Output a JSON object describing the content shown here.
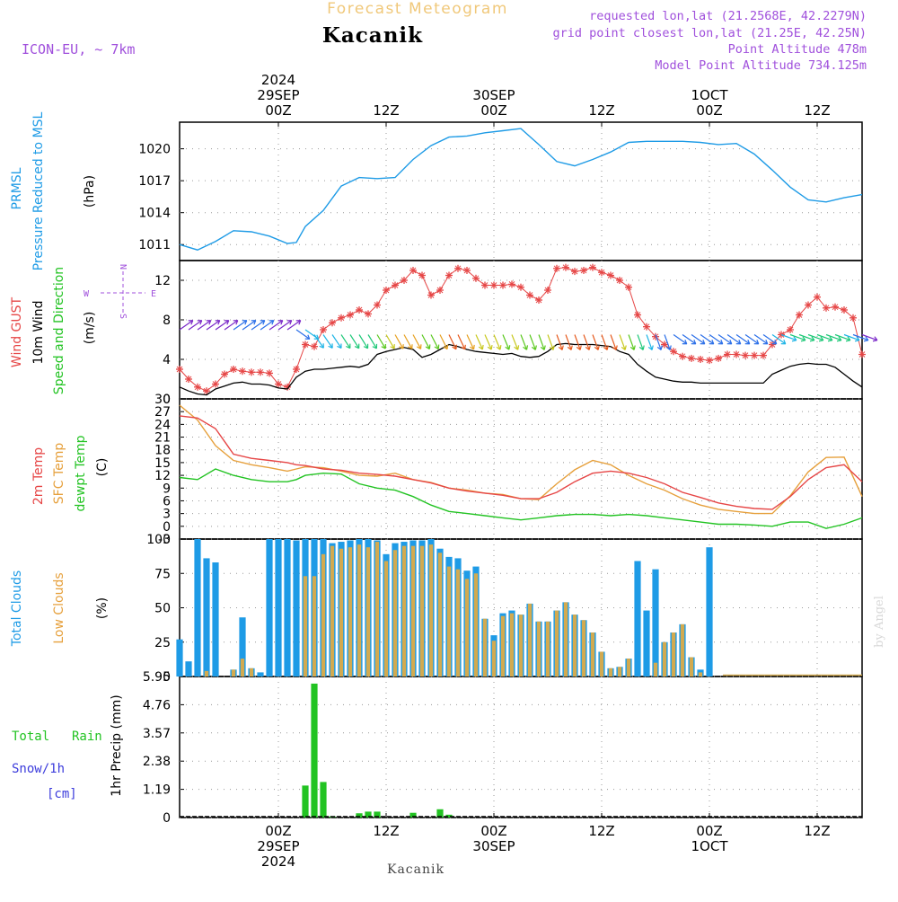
{
  "header": {
    "title": "Forecast Meteogram",
    "location": "Kacanik",
    "model": "ICON-EU, ~ 7km",
    "requested": "requested lon,lat (21.2568E, 42.2279N)",
    "gridpoint": "grid point closest lon,lat (21.25E, 42.25N)",
    "point_alt": "Point Altitude 478m",
    "model_alt": "Model Point Altitude 734.125m"
  },
  "footer": {
    "location": "Kacanik",
    "watermark": "by Angel"
  },
  "time_axis": {
    "ticks": [
      {
        "hour": 0,
        "top": [
          "2024",
          "29SEP",
          "00Z"
        ],
        "bottom": [
          "00Z",
          "29SEP",
          "2024"
        ]
      },
      {
        "hour": 12,
        "top": [
          "12Z"
        ],
        "bottom": [
          "12Z"
        ]
      },
      {
        "hour": 24,
        "top": [
          "30SEP",
          "00Z"
        ],
        "bottom": [
          "00Z",
          "30SEP"
        ]
      },
      {
        "hour": 36,
        "top": [
          "12Z"
        ],
        "bottom": [
          "12Z"
        ]
      },
      {
        "hour": 48,
        "top": [
          "1OCT",
          "00Z"
        ],
        "bottom": [
          "00Z",
          "1OCT"
        ]
      },
      {
        "hour": 60,
        "top": [
          "12Z"
        ],
        "bottom": [
          "12Z"
        ]
      }
    ],
    "range_hours": [
      -11,
      65
    ]
  },
  "colors": {
    "pressure": "#1e9be6",
    "gust": "#e64646",
    "wind": "#000000",
    "temp2m": "#e64646",
    "sfc": "#e6a03c",
    "dewpt": "#22c322",
    "total_clouds": "#1e9be6",
    "low_clouds": "#d2aa50",
    "rain": "#22c322",
    "snow": "#3c3cdc",
    "title_faint": "#f0c87a",
    "info": "#a050dc",
    "grid": "#999999"
  },
  "panels": [
    {
      "id": "pressure",
      "ylabels": [
        "PRMSL",
        "Pressure Reduced to MSL",
        "(hPa)"
      ],
      "ticks": [
        "1011",
        "1014",
        "1017",
        "1020"
      ]
    },
    {
      "id": "wind",
      "ylabels": [
        "Wind GUST",
        "10m Wind",
        "Speed and Direction",
        "(m/s)"
      ],
      "ticks": [
        "0",
        "4",
        "8",
        "12"
      ],
      "compass": [
        "N",
        "W",
        "E",
        "S"
      ]
    },
    {
      "id": "temp",
      "ylabels": [
        "2m Temp",
        "SFC Temp",
        "dewpt Temp",
        "(C)"
      ],
      "ticks": [
        "-3",
        "0",
        "3",
        "6",
        "9",
        "12",
        "15",
        "18",
        "21",
        "24",
        "27",
        "30"
      ]
    },
    {
      "id": "clouds",
      "ylabels": [
        "Total Clouds",
        "Low Clouds",
        "(%)"
      ],
      "ticks": [
        "0",
        "25",
        "50",
        "75",
        "100"
      ]
    },
    {
      "id": "precip",
      "ylabels": [
        "Total",
        "Rain",
        "Snow/1h",
        "[cm]",
        "1hr Precip (mm)"
      ],
      "ticks": [
        "0",
        "1.19",
        "2.38",
        "3.57",
        "4.76",
        "5.95"
      ]
    }
  ],
  "chart_data": [
    {
      "type": "line",
      "title": "PRMSL",
      "ylabel": "(hPa)",
      "ylim": [
        1009.5,
        1022.5
      ],
      "x": [
        -11,
        -9,
        -7,
        -5,
        -3,
        -1,
        1,
        2,
        3,
        5,
        7,
        9,
        11,
        13,
        15,
        17,
        19,
        21,
        23,
        25,
        27,
        29,
        31,
        33,
        35,
        37,
        39,
        41,
        43,
        45,
        47,
        49,
        51,
        53,
        55,
        57,
        59,
        61,
        63,
        65
      ],
      "series": [
        {
          "values": [
            1011,
            1010.5,
            1011.3,
            1012.3,
            1012.2,
            1011.8,
            1011.1,
            1011.2,
            1012.7,
            1014.2,
            1016.5,
            1017.3,
            1017.2,
            1017.3,
            1019,
            1020.3,
            1021.1,
            1021.2,
            1021.5,
            1021.7,
            1021.9,
            1020.4,
            1018.8,
            1018.4,
            1019,
            1019.7,
            1020.6,
            1020.7,
            1020.7,
            1020.7,
            1020.6,
            1020.4,
            1020.5,
            1019.5,
            1018,
            1016.4,
            1015.2,
            1015,
            1015.4,
            1015.7
          ]
        }
      ]
    },
    {
      "type": "line",
      "title": "Wind",
      "ylabel": "(m/s)",
      "ylim": [
        0,
        14
      ],
      "x": [
        -11,
        -10,
        -9,
        -8,
        -7,
        -6,
        -5,
        -4,
        -3,
        -2,
        -1,
        0,
        1,
        2,
        3,
        4,
        5,
        6,
        7,
        8,
        9,
        10,
        11,
        12,
        13,
        14,
        15,
        16,
        17,
        18,
        19,
        20,
        21,
        22,
        23,
        24,
        25,
        26,
        27,
        28,
        29,
        30,
        31,
        32,
        33,
        34,
        35,
        36,
        37,
        38,
        39,
        40,
        41,
        42,
        43,
        44,
        45,
        46,
        47,
        48,
        49,
        50,
        51,
        52,
        53,
        54,
        55,
        56,
        57,
        58,
        59,
        60,
        61,
        62,
        63,
        64,
        65
      ],
      "series": [
        {
          "name": "Wind GUST",
          "values": [
            3,
            2,
            1.2,
            0.8,
            1.5,
            2.5,
            3,
            2.8,
            2.7,
            2.7,
            2.6,
            1.5,
            1.2,
            3,
            5.5,
            5.3,
            7,
            7.7,
            8.2,
            8.5,
            9,
            8.6,
            9.5,
            11,
            11.5,
            12,
            13,
            12.5,
            10.5,
            11,
            12.5,
            13.2,
            13,
            12.2,
            11.5,
            11.5,
            11.5,
            11.6,
            11.3,
            10.5,
            10,
            11,
            13.2,
            13.3,
            12.9,
            13,
            13.3,
            12.8,
            12.5,
            12,
            11.3,
            8.5,
            7.3,
            6.3,
            5.5,
            4.8,
            4.3,
            4.1,
            4,
            3.9,
            4.1,
            4.5,
            4.5,
            4.4,
            4.4,
            4.4,
            5.5,
            6.5,
            7,
            8.5,
            9.5,
            10.3,
            9.2,
            9.3,
            9,
            8.2,
            4.5
          ]
        },
        {
          "name": "10m Wind",
          "values": [
            1.2,
            0.8,
            0.5,
            0.4,
            1,
            1.3,
            1.6,
            1.7,
            1.5,
            1.5,
            1.4,
            1.1,
            1,
            2.2,
            2.8,
            3,
            3,
            3.1,
            3.2,
            3.3,
            3.2,
            3.5,
            4.5,
            4.8,
            5,
            5.2,
            5,
            4.2,
            4.5,
            5,
            5.5,
            5.3,
            5,
            4.8,
            4.7,
            4.6,
            4.5,
            4.6,
            4.3,
            4.2,
            4.3,
            4.8,
            5.5,
            5.6,
            5.5,
            5.5,
            5.5,
            5.4,
            5.3,
            4.8,
            4.5,
            3.5,
            2.8,
            2.2,
            2,
            1.8,
            1.7,
            1.7,
            1.6,
            1.6,
            1.6,
            1.6,
            1.6,
            1.6,
            1.6,
            1.6,
            2.5,
            2.9,
            3.3,
            3.5,
            3.6,
            3.5,
            3.5,
            3.2,
            2.5,
            1.8,
            1.2
          ]
        }
      ]
    },
    {
      "type": "line",
      "title": "Temperature",
      "ylabel": "(C)",
      "ylim": [
        -3,
        30
      ],
      "x": [
        -11,
        -9,
        -7,
        -5,
        -3,
        -1,
        1,
        2,
        3,
        5,
        7,
        9,
        11,
        13,
        15,
        17,
        19,
        21,
        23,
        25,
        27,
        29,
        31,
        33,
        35,
        37,
        39,
        41,
        43,
        45,
        47,
        49,
        51,
        53,
        55,
        57,
        59,
        61,
        63,
        65
      ],
      "series": [
        {
          "name": "2m Temp",
          "values": [
            26,
            25.5,
            23,
            17,
            16,
            15.5,
            15,
            14.5,
            14.3,
            13.5,
            13.2,
            12.5,
            12.2,
            11.8,
            11,
            10.2,
            9,
            8.3,
            7.8,
            7.3,
            6.5,
            6.5,
            8,
            10.5,
            12.5,
            13,
            12.5,
            11.5,
            10,
            8,
            6.8,
            5.5,
            4.7,
            4.2,
            4,
            7,
            11,
            13.8,
            14.5,
            10.5
          ]
        },
        {
          "name": "SFC Temp",
          "values": [
            28.5,
            25,
            19,
            15.5,
            14.5,
            13.8,
            13,
            13.5,
            14,
            13.8,
            13,
            12,
            11.8,
            12.5,
            11,
            10.3,
            9,
            8.5,
            7.8,
            7.5,
            6.5,
            6.3,
            10,
            13.3,
            15.5,
            14.5,
            12,
            10,
            8.5,
            6.5,
            5,
            4,
            3.5,
            3,
            3,
            7.2,
            12.8,
            16.2,
            16.3,
            7
          ]
        },
        {
          "name": "dewpt Temp",
          "values": [
            11.5,
            11,
            13.5,
            12,
            11,
            10.5,
            10.5,
            11,
            12,
            12.5,
            12.3,
            10,
            9,
            8.5,
            7,
            5,
            3.5,
            3,
            2.5,
            2,
            1.5,
            2,
            2.5,
            2.8,
            2.8,
            2.5,
            2.8,
            2.5,
            2,
            1.5,
            1,
            0.5,
            0.5,
            0.3,
            0,
            1,
            1,
            -0.5,
            0.5,
            2
          ]
        }
      ]
    },
    {
      "type": "bar",
      "title": "Clouds",
      "ylabel": "(%)",
      "ylim": [
        0,
        100
      ],
      "x": [
        -11,
        -10,
        -9,
        -8,
        -7,
        -6,
        -5,
        -4,
        -3,
        -2,
        -1,
        0,
        1,
        2,
        3,
        4,
        5,
        6,
        7,
        8,
        9,
        10,
        11,
        12,
        13,
        14,
        15,
        16,
        17,
        18,
        19,
        20,
        21,
        22,
        23,
        24,
        25,
        26,
        27,
        28,
        29,
        30,
        31,
        32,
        33,
        34,
        35,
        36,
        37,
        38,
        39,
        40,
        41,
        42,
        43,
        44,
        45,
        46,
        47,
        48,
        49,
        50,
        51,
        52,
        53,
        54,
        55,
        56,
        57,
        58,
        59,
        60,
        61,
        62,
        63,
        64,
        65
      ],
      "series": [
        {
          "name": "Total Clouds",
          "values": [
            27,
            11,
            100,
            86,
            83,
            0,
            5,
            43,
            6,
            3,
            100,
            100,
            100,
            99,
            100,
            100,
            100,
            97,
            98,
            99,
            100,
            100,
            99,
            89,
            97,
            98,
            99,
            99,
            100,
            93,
            87,
            86,
            77,
            80,
            42,
            30,
            46,
            48,
            45,
            53,
            40,
            40,
            48,
            54,
            45,
            41,
            32,
            18,
            6,
            7,
            13,
            84,
            48,
            78,
            25,
            32,
            38,
            14,
            5,
            94,
            0,
            0,
            0,
            0,
            0,
            0,
            0,
            0,
            0,
            0,
            0,
            0,
            0,
            0,
            0,
            0,
            0
          ]
        },
        {
          "name": "Low Clouds",
          "values": [
            0,
            0,
            0,
            4,
            0,
            0,
            5,
            13,
            6,
            0,
            0,
            0,
            0,
            0,
            73,
            73,
            89,
            95,
            93,
            94,
            96,
            94,
            98,
            84,
            92,
            95,
            95,
            95,
            96,
            90,
            80,
            78,
            71,
            75,
            42,
            26,
            44,
            46,
            45,
            53,
            40,
            40,
            48,
            54,
            45,
            41,
            32,
            18,
            6,
            7,
            13,
            0,
            0,
            10,
            25,
            32,
            38,
            14,
            3,
            0,
            0,
            0,
            0,
            0,
            0,
            0,
            0,
            0,
            0,
            0,
            0,
            0,
            0,
            0,
            0,
            0,
            0
          ]
        }
      ]
    },
    {
      "type": "bar",
      "title": "1hr Precip",
      "ylabel": "1hr Precip (mm)",
      "ylim": [
        0,
        5.95
      ],
      "x": [
        3,
        4,
        5,
        6,
        9,
        10,
        11,
        15,
        18,
        19
      ],
      "series": [
        {
          "name": "Total Rain",
          "values": [
            1.35,
            5.65,
            1.5,
            0.05,
            0.18,
            0.25,
            0.25,
            0.2,
            0.35,
            0.12
          ]
        }
      ]
    }
  ]
}
